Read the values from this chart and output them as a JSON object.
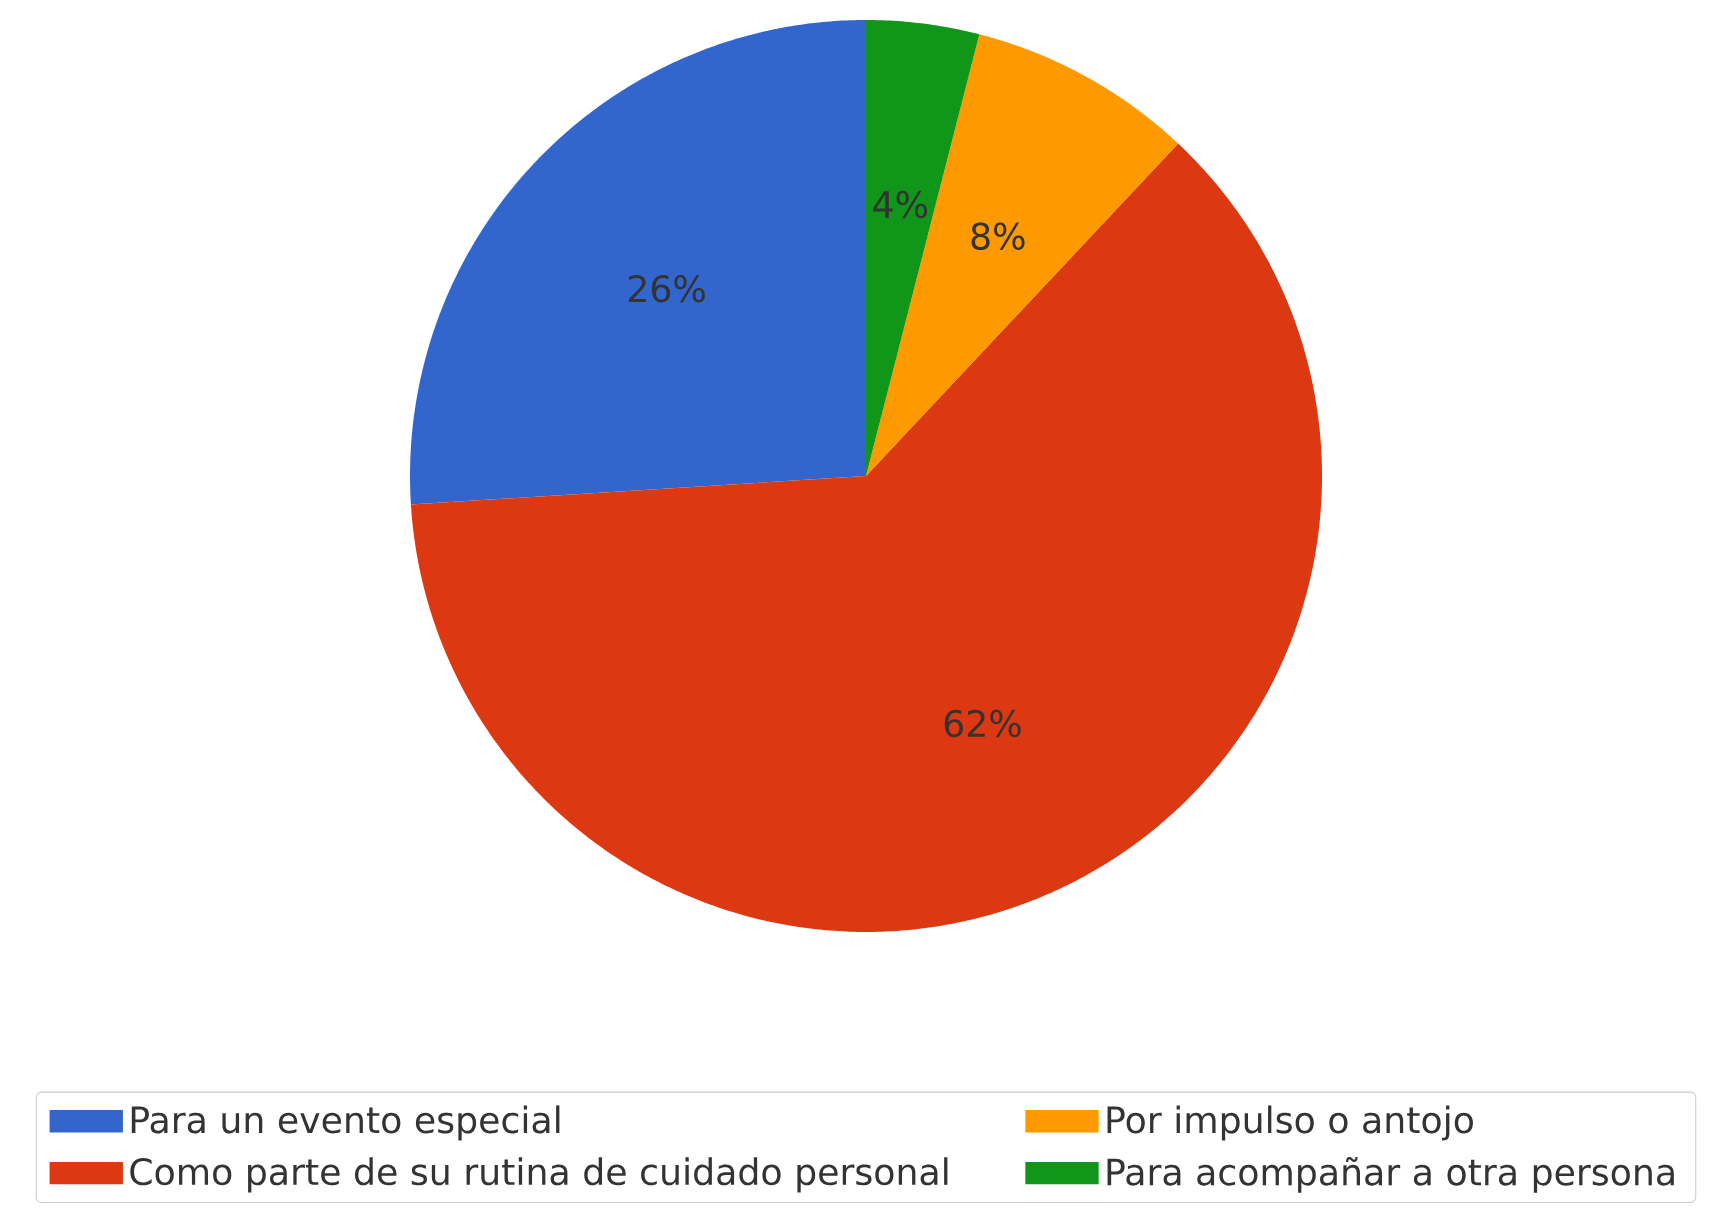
{
  "chart_data": {
    "type": "pie",
    "categories": [
      "Para un evento especial",
      "Como parte de su rutina de cuidado personal",
      "Por impulso o antojo",
      "Para acompañar a otra persona"
    ],
    "values": [
      26,
      62,
      8,
      4
    ],
    "colors": [
      "#3366cc",
      "#dc3912",
      "#ff9900",
      "#109618"
    ],
    "value_labels": [
      "26%",
      "62%",
      "8%",
      "4%"
    ],
    "legend": "bottom"
  }
}
